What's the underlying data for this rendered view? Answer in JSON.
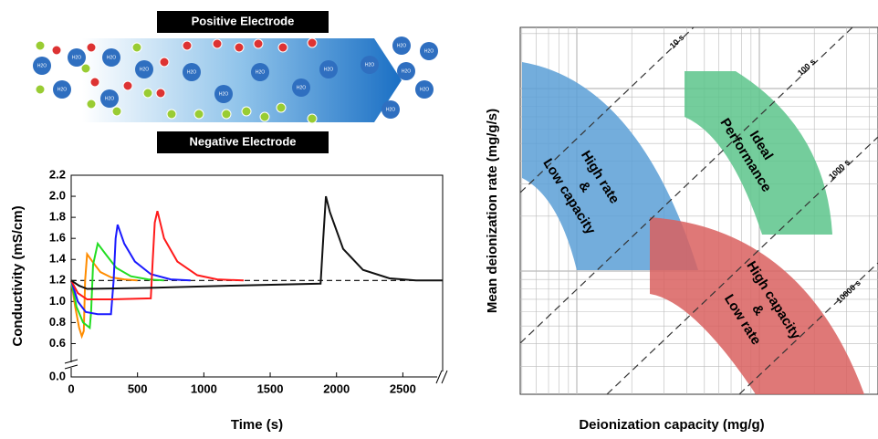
{
  "diagram": {
    "top_label": "Positive Electrode",
    "bottom_label": "Negative Electrode",
    "molecule_label": "H2O"
  },
  "chart_data": [
    {
      "type": "line",
      "x_label": "Time (s)",
      "y_label": "Conductivity (mS/cm)",
      "xlim": [
        0,
        2800
      ],
      "xticks": [
        0,
        500,
        1000,
        1500,
        2000,
        2500
      ],
      "ylim": [
        0,
        2.2
      ],
      "ybreak": [
        0.05,
        0.5
      ],
      "yticks": [
        {
          "value": 0,
          "label": "0.0"
        },
        0.6,
        0.8,
        {
          "value": 1,
          "label": "1.0"
        },
        1.2,
        1.4,
        1.6,
        1.8,
        {
          "value": 2,
          "label": "2.0"
        },
        2.2
      ],
      "series": [
        {
          "color": "#000000",
          "dashed": true,
          "x": [
            0,
            2800
          ],
          "values": [
            1.2,
            1.2
          ]
        },
        {
          "color": "#ff8c00",
          "x": [
            0,
            30,
            60,
            80,
            95,
            105,
            120,
            160,
            220,
            300,
            400,
            500
          ],
          "values": [
            1.2,
            0.95,
            0.75,
            0.67,
            0.72,
            1.2,
            1.45,
            1.38,
            1.28,
            1.23,
            1.21,
            1.2
          ]
        },
        {
          "color": "#22dd22",
          "x": [
            0,
            40,
            90,
            140,
            150,
            165,
            200,
            260,
            340,
            450,
            580,
            700
          ],
          "values": [
            1.2,
            0.95,
            0.8,
            0.75,
            0.9,
            1.35,
            1.55,
            1.45,
            1.32,
            1.24,
            1.21,
            1.2
          ]
        },
        {
          "color": "#1a1aff",
          "x": [
            0,
            50,
            110,
            200,
            300,
            320,
            335,
            350,
            400,
            480,
            600,
            750,
            900
          ],
          "values": [
            1.2,
            1.0,
            0.9,
            0.88,
            0.88,
            1.2,
            1.6,
            1.73,
            1.55,
            1.38,
            1.26,
            1.21,
            1.2
          ]
        },
        {
          "color": "#ff1a1a",
          "x": [
            0,
            50,
            120,
            300,
            600,
            615,
            630,
            650,
            700,
            800,
            950,
            1100,
            1300
          ],
          "values": [
            1.2,
            1.08,
            1.02,
            1.02,
            1.03,
            1.4,
            1.75,
            1.86,
            1.6,
            1.38,
            1.25,
            1.21,
            1.2
          ]
        },
        {
          "color": "#111111",
          "x": [
            0,
            60,
            120,
            600,
            1200,
            1880,
            1900,
            1920,
            1950,
            2050,
            2200,
            2400,
            2600,
            2800
          ],
          "values": [
            1.2,
            1.15,
            1.12,
            1.13,
            1.15,
            1.17,
            1.6,
            2.0,
            1.85,
            1.5,
            1.3,
            1.22,
            1.2,
            1.2
          ]
        }
      ]
    },
    {
      "type": "region",
      "x_label": "Deionization capacity (mg/g)",
      "y_label": "Mean deionization rate (mg/g/s)",
      "time_lines": [
        "10 s",
        "100 s",
        "1000 s",
        "10000 s"
      ],
      "regions": [
        {
          "label": [
            "High rate",
            "&",
            "Low capacity"
          ],
          "color": "#5b9fd6"
        },
        {
          "label": [
            "Ideal",
            "Performance"
          ],
          "color": "#5cc48b"
        },
        {
          "label": [
            "High capacity",
            "&",
            "Low rate"
          ],
          "color": "#d9605f"
        }
      ]
    }
  ]
}
